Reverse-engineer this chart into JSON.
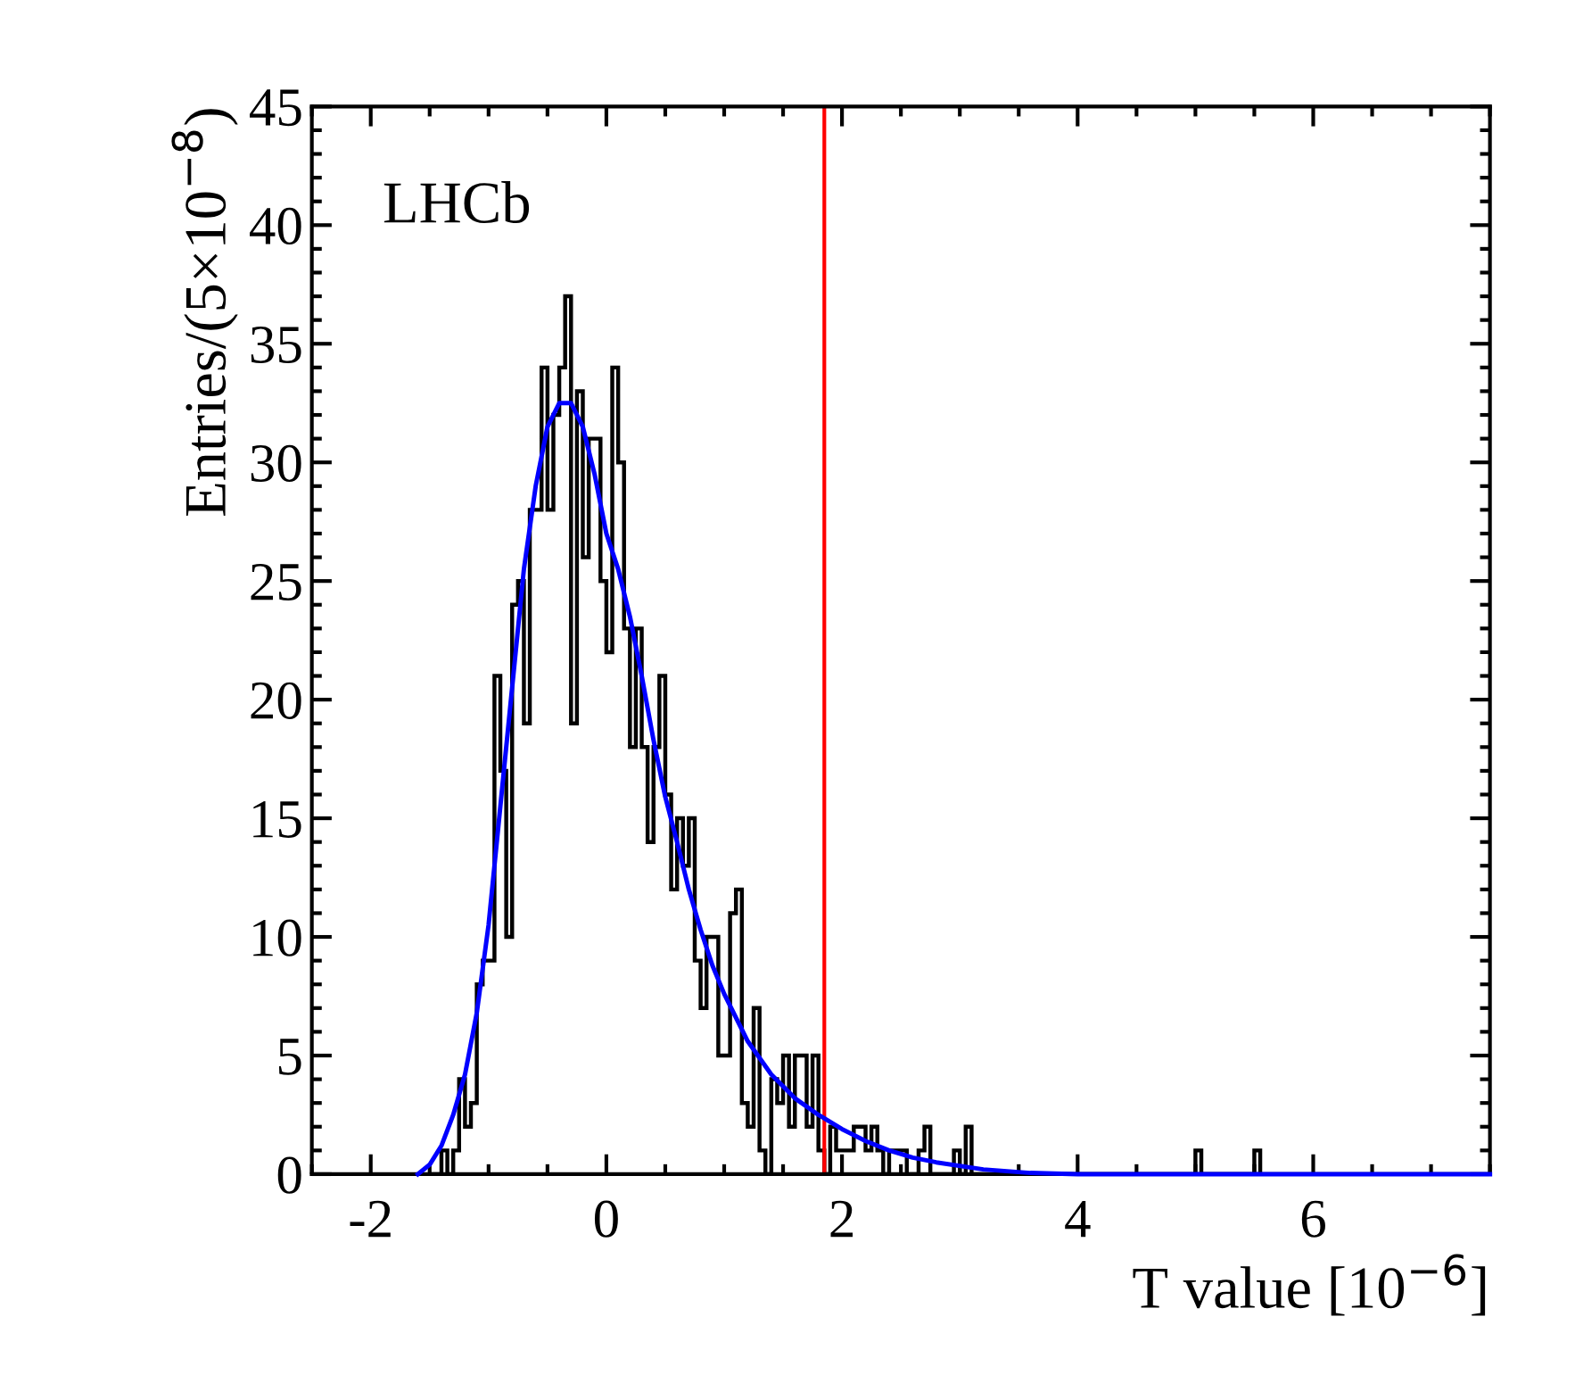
{
  "chart_data": {
    "type": "histogram",
    "xlabel": "T value [10$^{−6}$]",
    "ylabel": "Entries/(5×10$^{−8}$)",
    "annotations": [
      "LHCb"
    ],
    "bins": [
      -1.5,
      -1.45,
      -1.4,
      -1.35,
      -1.3,
      -1.25,
      -1.2,
      -1.15,
      -1.1,
      -1.05,
      -1.0,
      -0.95,
      -0.9,
      -0.85,
      -0.8,
      -0.75,
      -0.7,
      -0.65,
      -0.6,
      -0.55,
      -0.5,
      -0.45,
      -0.4,
      -0.35,
      -0.3,
      -0.25,
      -0.2,
      -0.15,
      -0.1,
      -0.05,
      0.0,
      0.05,
      0.1,
      0.15,
      0.2,
      0.25,
      0.3,
      0.35,
      0.4,
      0.45,
      0.5,
      0.55,
      0.6,
      0.65,
      0.7,
      0.75,
      0.8,
      0.85,
      0.9,
      0.95,
      1.0,
      1.05,
      1.1,
      1.15,
      1.2,
      1.25,
      1.3,
      1.35,
      1.4,
      1.45,
      1.5,
      1.55,
      1.6,
      1.65,
      1.7,
      1.75,
      1.8,
      1.85,
      1.9,
      1.95,
      2.0,
      2.05,
      2.1,
      2.15,
      2.2,
      2.25,
      2.3,
      2.35,
      2.4,
      2.45,
      2.5,
      2.55,
      2.6,
      2.65,
      2.7,
      2.75,
      2.8,
      2.85,
      2.9,
      2.95,
      3.0,
      3.05,
      3.1,
      3.15,
      5.0,
      5.05,
      5.5,
      5.55
    ],
    "values": [
      0,
      0,
      1,
      0,
      1,
      4,
      2,
      3,
      8,
      9,
      9,
      21,
      17,
      10,
      24,
      25,
      19,
      28,
      28,
      34,
      28,
      32,
      34,
      37,
      19,
      33,
      26,
      31,
      31,
      25,
      22,
      34,
      30,
      23,
      18,
      23,
      18,
      14,
      18,
      21,
      16,
      12,
      15,
      13,
      15,
      9,
      7,
      10,
      10,
      5,
      5,
      11,
      12,
      3,
      2,
      7,
      1,
      0,
      4,
      3,
      5,
      2,
      5,
      5,
      2,
      5,
      1,
      0,
      2,
      1,
      1,
      1,
      2,
      2,
      1,
      2,
      1,
      0,
      1,
      1,
      1,
      0,
      0,
      1,
      2,
      0,
      0,
      0,
      0,
      1,
      0,
      2,
      0,
      0,
      1,
      0,
      1
    ],
    "color": "#000000",
    "series": [
      {
        "type": "line",
        "color": "#0000ff",
        "x": [
          -1.6,
          -1.5,
          -1.4,
          -1.3,
          -1.2,
          -1.1,
          -1.0,
          -0.9,
          -0.8,
          -0.7,
          -0.6,
          -0.5,
          -0.4,
          -0.3,
          -0.2,
          -0.1,
          0.0,
          0.1,
          0.2,
          0.3,
          0.4,
          0.5,
          0.6,
          0.7,
          0.8,
          0.9,
          1.0,
          1.2,
          1.4,
          1.6,
          1.8,
          2.0,
          2.2,
          2.4,
          2.6,
          2.8,
          3.2,
          3.6,
          4.0,
          7.5
        ],
        "values": [
          0,
          0.4,
          1.2,
          2.5,
          4.2,
          6.8,
          10.5,
          15.5,
          20.5,
          25.5,
          29,
          31.5,
          32.5,
          32.5,
          31.5,
          29.5,
          27,
          25.5,
          23.5,
          21,
          18.3,
          15.9,
          14,
          12,
          10.3,
          8.8,
          7.6,
          5.6,
          4.2,
          3.2,
          2.5,
          1.9,
          1.4,
          1,
          0.7,
          0.5,
          0.2,
          0.05,
          0,
          0
        ]
      }
    ],
    "ref_lines": [
      {
        "axis": "x",
        "value": 1.85,
        "color": "#ff0000"
      }
    ],
    "xlim": [
      -2.5,
      7.5
    ],
    "xticks": [
      -2,
      0,
      2,
      4,
      6
    ],
    "ylim": [
      0,
      45
    ],
    "yticks": [
      0,
      5,
      10,
      15,
      20,
      25,
      30,
      35,
      40,
      45
    ]
  }
}
